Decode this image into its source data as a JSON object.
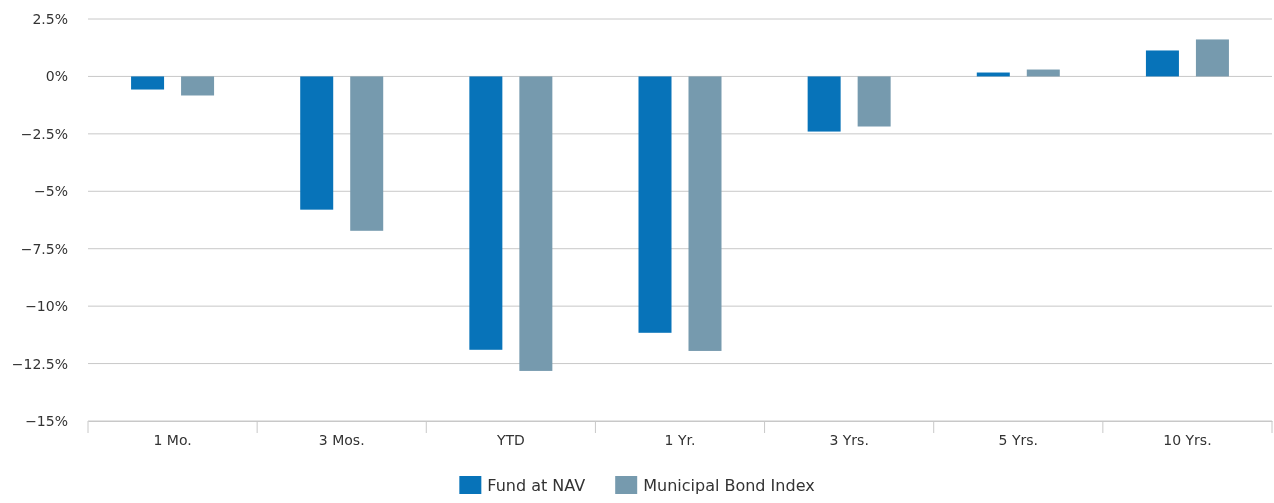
{
  "chart_data": {
    "type": "bar",
    "categories": [
      "1 Mo.",
      "3 Mos.",
      "YTD",
      "1 Yr.",
      "3 Yrs.",
      "5 Yrs.",
      "10 Yrs."
    ],
    "series": [
      {
        "name": "Fund at NAV",
        "color": "#0773b9",
        "values": [
          -0.57,
          -5.8,
          -11.9,
          -11.16,
          -2.4,
          0.17,
          1.13
        ]
      },
      {
        "name": "Municipal Bond Index",
        "color": "#769aae",
        "values": [
          -0.83,
          -6.72,
          -12.82,
          -11.95,
          -2.18,
          0.3,
          1.61
        ]
      }
    ],
    "ylim": [
      -15,
      2.5
    ],
    "yticks": [
      {
        "value": 2.5,
        "label": "2.5%"
      },
      {
        "value": 0,
        "label": "0%"
      },
      {
        "value": -2.5,
        "label": "−2.5%"
      },
      {
        "value": -5,
        "label": "−5%"
      },
      {
        "value": -7.5,
        "label": "−7.5%"
      },
      {
        "value": -10,
        "label": "−10%"
      },
      {
        "value": -12.5,
        "label": "−12.5%"
      },
      {
        "value": -15,
        "label": "−15%"
      }
    ],
    "grid": "y",
    "legend": "bottom"
  }
}
